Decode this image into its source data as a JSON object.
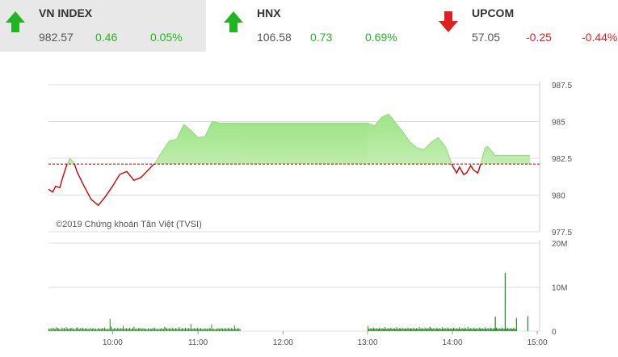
{
  "tickers": [
    {
      "name": "VN INDEX",
      "value": "982.57",
      "change": "0.46",
      "percent": "0.05%",
      "direction": "up",
      "icon": "arrow-up-icon"
    },
    {
      "name": "HNX",
      "value": "106.58",
      "change": "0.73",
      "percent": "0.69%",
      "direction": "up",
      "icon": "arrow-up-icon"
    },
    {
      "name": "UPCOM",
      "value": "57.05",
      "change": "-0.25",
      "percent": "-0.44%",
      "direction": "down",
      "icon": "arrow-down-icon"
    }
  ],
  "colors": {
    "up": "#22b522",
    "down": "#e02020",
    "area_fill": "#b7eca5",
    "below_line": "#d00000",
    "reference_line": "#b00000",
    "volume_bar": "#2e8b2e"
  },
  "chart_data": [
    {
      "type": "area",
      "credit": "©2019 Chứng khoán Tân Việt (TVSI)",
      "x_ticks": [
        "10:00",
        "11:00",
        "12:00",
        "13:00",
        "14:00",
        "15:00"
      ],
      "y_ticks": [
        "987.5",
        "985",
        "982.5",
        "980",
        "977.5"
      ],
      "ylim": [
        977.5,
        987.5
      ],
      "reference_value": 982.11,
      "grid": true,
      "series": [
        {
          "x": [
            "09:15",
            "09:18",
            "09:20",
            "09:23",
            "09:25",
            "09:28",
            "09:30",
            "09:33",
            "09:35",
            "09:38",
            "09:40",
            "09:45",
            "09:50",
            "09:55",
            "10:00",
            "10:05",
            "10:10",
            "10:15",
            "10:20",
            "10:25",
            "10:30",
            "10:35",
            "10:40",
            "10:45",
            "10:50",
            "10:55",
            "11:00",
            "11:05",
            "11:10",
            "11:15",
            "11:20",
            "11:25",
            "11:30",
            "13:00",
            "13:05",
            "13:10",
            "13:15",
            "13:20",
            "13:25",
            "13:30",
            "13:35",
            "13:40",
            "13:45",
            "13:50",
            "13:55",
            "14:00",
            "14:03",
            "14:05",
            "14:08",
            "14:10",
            "14:13",
            "14:15",
            "14:18",
            "14:20",
            "14:23",
            "14:25",
            "14:30",
            "14:45",
            "14:55"
          ],
          "values": [
            980.4,
            980.2,
            980.6,
            980.5,
            981.2,
            982.1,
            982.5,
            982.2,
            981.6,
            981.0,
            980.6,
            979.7,
            979.3,
            979.9,
            980.6,
            981.4,
            981.6,
            981.0,
            981.2,
            981.7,
            982.2,
            983.0,
            983.7,
            983.8,
            984.8,
            984.4,
            983.9,
            984.0,
            985.0,
            984.9,
            984.9,
            984.9,
            984.9,
            984.9,
            984.7,
            985.3,
            985.5,
            984.9,
            984.3,
            983.6,
            983.2,
            983.1,
            983.6,
            983.9,
            983.3,
            982.0,
            981.5,
            981.9,
            981.4,
            981.5,
            982.0,
            981.7,
            981.5,
            982.1,
            983.2,
            983.3,
            982.7,
            982.7,
            982.7
          ]
        }
      ]
    },
    {
      "type": "bar",
      "y_ticks": [
        "20M",
        "10M",
        "0"
      ],
      "ylim": [
        0,
        20
      ],
      "session1": [
        0.6,
        0.5,
        0.7,
        0.4,
        0.8,
        0.6,
        0.5,
        0.9,
        0.7,
        0.6,
        0.5,
        0.4,
        0.8,
        0.6,
        0.7,
        0.5,
        0.9,
        0.6,
        0.5,
        0.7,
        0.6,
        0.8,
        0.5,
        0.6,
        0.4,
        0.7,
        0.9,
        0.6,
        0.5,
        0.7,
        0.6,
        0.8,
        0.5,
        0.6,
        0.7,
        0.5,
        0.6,
        0.4,
        0.8,
        0.5,
        0.6,
        0.7,
        0.5,
        0.6,
        0.4,
        0.7,
        0.5,
        0.6,
        0.5,
        0.7,
        0.6,
        0.8,
        0.5,
        0.6,
        0.4,
        0.6,
        2.8,
        1.1,
        0.6,
        0.5,
        0.7,
        0.6,
        0.5,
        0.8,
        0.6,
        0.5,
        0.7,
        0.6,
        1.2,
        0.5,
        0.6,
        0.7,
        0.5,
        0.6,
        0.8,
        0.5,
        0.6,
        0.7,
        1.0,
        0.5,
        0.6,
        0.5,
        0.7,
        0.6,
        0.8,
        0.5,
        0.6,
        0.7,
        0.5,
        0.6,
        0.4,
        0.7,
        0.5,
        0.6,
        0.5,
        0.7,
        0.6,
        0.8,
        0.5,
        0.6,
        0.4,
        0.6,
        0.5,
        0.7,
        0.6,
        0.5,
        1.0,
        0.8,
        0.6,
        0.5,
        0.7,
        0.6,
        0.5,
        0.8,
        0.6,
        0.5,
        0.7,
        0.6,
        0.5,
        0.9,
        0.6,
        0.5,
        0.7,
        0.6,
        0.5,
        0.8,
        0.6,
        0.5,
        0.7,
        0.6,
        1.6,
        0.5,
        0.6,
        0.7,
        0.5,
        0.6,
        0.8,
        0.5,
        0.6,
        0.7,
        0.5,
        0.6,
        0.4,
        0.7,
        0.5,
        0.6,
        0.5,
        0.7,
        0.6,
        1.5,
        0.5,
        0.6,
        0.4,
        0.6,
        0.5,
        0.7,
        0.6,
        0.5,
        0.8,
        0.6,
        0.5,
        0.7,
        0.6,
        0.5,
        0.8,
        0.6,
        0.5,
        0.7,
        0.6,
        0.5,
        1.3,
        0.6,
        0.5,
        0.7,
        0.6,
        0.5
      ],
      "session2": [
        1.2,
        0.6,
        0.5,
        0.7,
        0.6,
        0.5,
        0.8,
        0.6,
        0.5,
        0.7,
        0.6,
        0.5,
        0.8,
        0.6,
        0.5,
        0.7,
        0.6,
        0.5,
        0.9,
        0.6,
        0.5,
        0.7,
        0.6,
        0.5,
        0.8,
        0.6,
        0.5,
        0.7,
        0.6,
        0.5,
        0.9,
        0.6,
        0.5,
        0.7,
        0.6,
        0.5,
        0.8,
        0.6,
        0.5,
        0.7,
        0.6,
        0.5,
        0.8,
        0.6,
        0.5,
        0.7,
        0.6,
        0.5,
        0.8,
        0.6,
        0.5,
        0.7,
        0.6,
        0.5,
        0.9,
        0.6,
        0.5,
        0.7,
        0.6,
        0.5,
        0.8,
        0.6,
        0.5,
        0.7,
        0.6,
        1.0,
        0.8,
        0.6,
        0.5,
        0.7,
        0.6,
        0.5,
        0.8,
        0.6,
        0.5,
        0.7,
        0.6,
        0.5,
        0.9,
        0.6,
        0.5,
        0.7,
        0.6,
        0.5,
        0.8,
        0.6,
        0.5,
        0.7,
        0.6,
        0.5,
        0.8,
        0.6,
        0.5,
        0.7,
        0.6,
        0.5,
        0.9,
        0.6,
        0.5,
        0.7,
        0.6,
        0.5,
        0.8,
        0.6,
        0.5,
        1.0,
        0.6,
        0.5,
        0.7,
        0.6,
        0.5,
        0.8,
        0.6,
        0.5,
        0.7,
        0.6,
        0.5,
        0.8,
        0.6,
        0.5,
        0.7,
        0.6,
        0.5,
        0.9,
        0.6,
        0.5,
        0.7,
        0.6,
        0.5,
        0.8,
        0.6,
        0.5,
        0.7,
        0.6,
        0.5,
        0.8,
        0.6,
        0.5,
        0.7,
        0.6,
        0.5,
        0.8,
        0.6,
        0.5,
        0.7,
        0.6,
        0.5,
        0.8,
        0.6,
        0.5,
        0.7,
        0.6,
        0.5,
        0.8,
        0.6,
        0.5
      ],
      "spikes": [
        {
          "t": "14:30",
          "value": 3.3
        },
        {
          "t": "14:37",
          "value": 13.2
        },
        {
          "t": "14:45",
          "value": 3.0
        },
        {
          "t": "14:53",
          "value": 3.4
        }
      ]
    }
  ]
}
